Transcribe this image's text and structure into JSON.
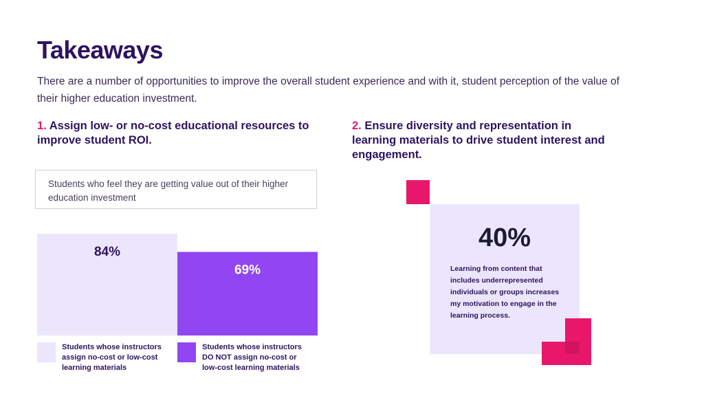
{
  "title": "Takeaways",
  "subtitle": "There are a number of opportunities to improve the overall student experience and with it, student perception of the value of their higher education investment.",
  "takeaway1": {
    "number": "1.",
    "text": "Assign low- or no-cost educational resources to improve student ROI."
  },
  "takeaway2": {
    "number": "2.",
    "text": "Ensure diversity and representation in learning materials to drive student interest and engagement."
  },
  "question": "Students who feel they are getting value out of their higher education investment",
  "chart_data": {
    "type": "bar",
    "title": "Students who feel they are getting value out of their higher education investment",
    "categories": [
      "Students whose instructors assign no-cost or low-cost learning materials",
      "Students whose instructors DO NOT assign no-cost or low-cost learning materials"
    ],
    "values": [
      84,
      69
    ],
    "value_labels": [
      "84%",
      "69%"
    ],
    "colors": [
      "#ece6fd",
      "#9146f2"
    ],
    "ylim": [
      0,
      100
    ],
    "grid": false,
    "legend": "bottom"
  },
  "stat": {
    "value": "40%",
    "description": "Learning from content that includes underrepresented individuals or groups increases my motivation to engage in the learning process."
  },
  "accent_color": "#e8176a"
}
